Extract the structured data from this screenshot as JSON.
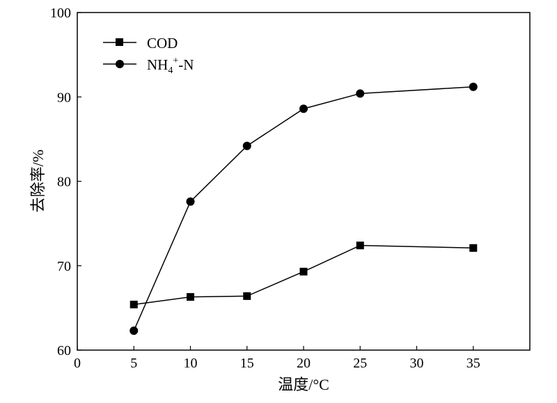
{
  "chart_data": {
    "type": "line",
    "xlabel": "温度/°C",
    "ylabel": "去除率/%",
    "xlim": [
      0,
      40
    ],
    "ylim": [
      60,
      100
    ],
    "x_ticks": [
      0,
      5,
      10,
      15,
      20,
      25,
      30,
      35
    ],
    "y_ticks": [
      60,
      70,
      80,
      90,
      100
    ],
    "x_tick_labels": [
      "0",
      "5",
      "10",
      "15",
      "20",
      "25",
      "30",
      "35"
    ],
    "y_tick_labels": [
      "60",
      "70",
      "80",
      "90",
      "100"
    ],
    "legend_position": "top-left",
    "grid": false,
    "series": [
      {
        "name": "COD",
        "marker": "square",
        "x": [
          5,
          10,
          15,
          20,
          25,
          35
        ],
        "values": [
          65.4,
          66.3,
          66.4,
          69.3,
          72.4,
          72.1
        ]
      },
      {
        "name": "NH4+-N",
        "legend_main": "NH",
        "legend_sub": "4",
        "legend_sup": "+",
        "legend_tail": "-N",
        "marker": "circle",
        "x": [
          5,
          10,
          15,
          20,
          25,
          35
        ],
        "values": [
          62.3,
          77.6,
          84.2,
          88.6,
          90.4,
          91.2
        ]
      }
    ]
  }
}
